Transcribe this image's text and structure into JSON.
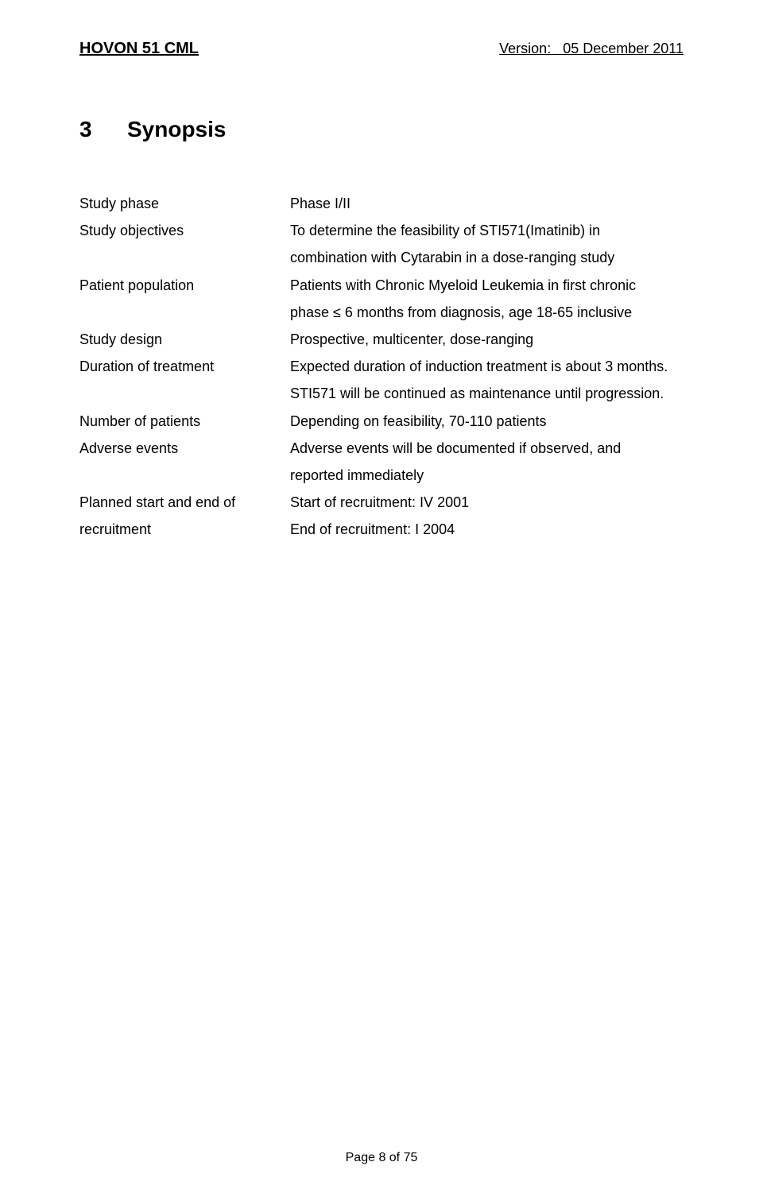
{
  "header": {
    "left": "HOVON 51 CML",
    "right_label": "Version:",
    "right_value": "05 December 2011"
  },
  "section": {
    "number": "3",
    "title": "Synopsis"
  },
  "rows": [
    {
      "label": "Study phase",
      "value_lines": [
        "Phase I/II"
      ]
    },
    {
      "label": "Study objectives",
      "value_lines": [
        "To determine the feasibility of STI571(Imatinib) in",
        "combination with Cytarabin in a dose-ranging study"
      ]
    },
    {
      "label": "Patient population",
      "value_lines": [
        "Patients with Chronic Myeloid Leukemia in first chronic",
        "phase ≤ 6 months from diagnosis, age 18-65 inclusive"
      ]
    },
    {
      "label": "Study design",
      "value_lines": [
        "Prospective, multicenter, dose-ranging"
      ]
    },
    {
      "label": "Duration of treatment",
      "value_lines": [
        "Expected duration of induction treatment is about 3 months.",
        "STI571 will be continued as maintenance until progression."
      ]
    },
    {
      "label": "Number of patients",
      "value_lines": [
        "Depending on feasibility, 70-110 patients"
      ]
    },
    {
      "label": "Adverse events",
      "value_lines": [
        "Adverse events will be documented if observed, and",
        "reported immediately"
      ]
    },
    {
      "label_lines": [
        "Planned start and end of",
        "recruitment"
      ],
      "value_lines": [
        "Start of recruitment: IV 2001",
        "End of recruitment: I 2004"
      ]
    }
  ],
  "footer": "Page 8 of 75"
}
